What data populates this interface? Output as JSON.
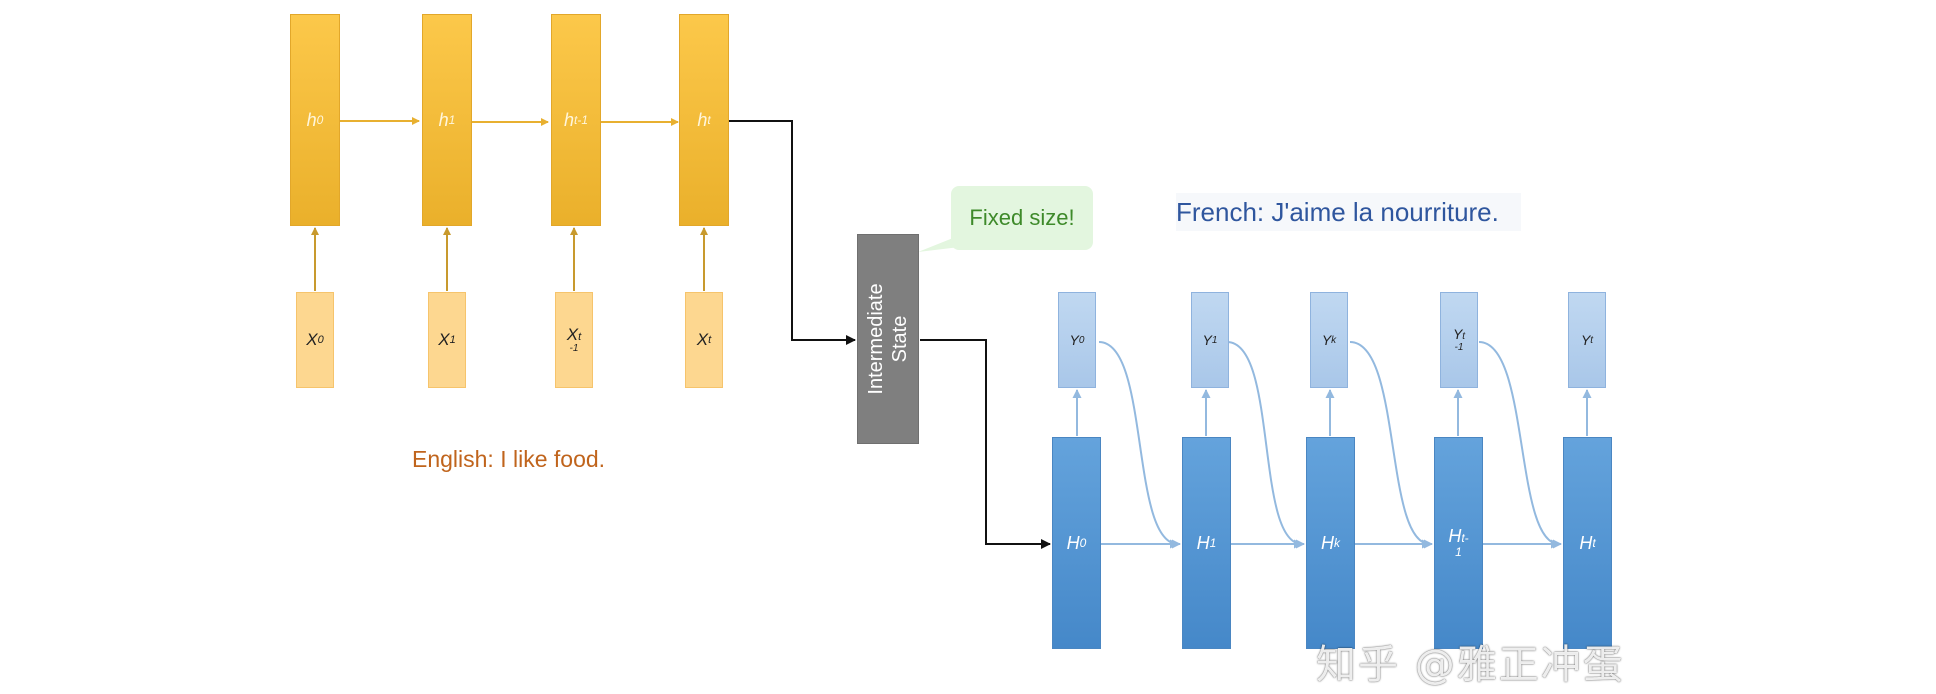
{
  "encoder": {
    "hidden": [
      {
        "main": "h",
        "sub": "0"
      },
      {
        "main": "h",
        "sub": "1"
      },
      {
        "main": "h",
        "sub": "t-1"
      },
      {
        "main": "h",
        "sub": "t"
      }
    ],
    "inputs": [
      {
        "main": "X",
        "sub": "0"
      },
      {
        "main": "X",
        "sub": "1"
      },
      {
        "main": "X",
        "sub": "t",
        "sub2": "-1"
      },
      {
        "main": "X",
        "sub": "t"
      }
    ],
    "caption": "English: I like food.",
    "color": "#f5bd3a"
  },
  "intermediate": {
    "line1": "Intermediate",
    "line2": "State",
    "callout": "Fixed size!"
  },
  "decoder": {
    "hidden": [
      {
        "main": "H",
        "sub": "0"
      },
      {
        "main": "H",
        "sub": "1"
      },
      {
        "main": "H",
        "sub": "k"
      },
      {
        "main": "H",
        "sub": "t-",
        "sub2": "1"
      },
      {
        "main": "H",
        "sub": "t"
      }
    ],
    "outputs": [
      {
        "main": "Y",
        "sub": "0"
      },
      {
        "main": "Y",
        "sub": "1"
      },
      {
        "main": "Y",
        "sub": "k"
      },
      {
        "main": "Y",
        "sub": "t",
        "sub2": "-1"
      },
      {
        "main": "Y",
        "sub": "t"
      }
    ],
    "caption": "French: J'aime la nourriture.",
    "color": "#4f93d2"
  },
  "watermark": "知乎 @雅正冲蛋"
}
